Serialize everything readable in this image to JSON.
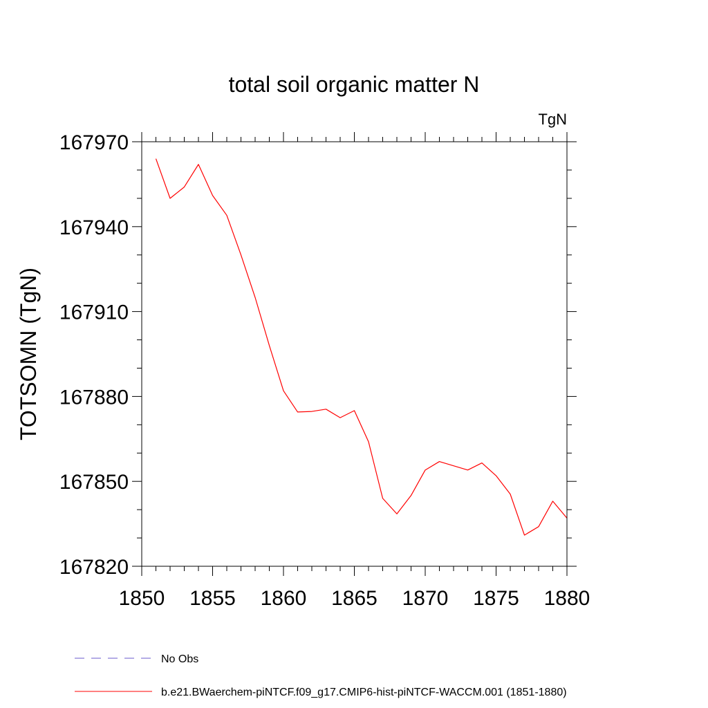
{
  "chart_data": {
    "type": "line",
    "title": "total soil organic matter N",
    "units_label": "TgN",
    "ylabel": "TOTSOMN  (TgN)",
    "xlabel": "",
    "xlim": [
      1850,
      1880
    ],
    "ylim": [
      167820,
      167970
    ],
    "xticks": [
      1850,
      1855,
      1860,
      1865,
      1870,
      1875,
      1880
    ],
    "xtick_labels": [
      "1850",
      "1855",
      "1860",
      "1865",
      "1870",
      "1875",
      "1880"
    ],
    "yticks": [
      167820,
      167850,
      167880,
      167910,
      167940,
      167970
    ],
    "ytick_labels": [
      "167820",
      "167850",
      "167880",
      "167910",
      "167940",
      "167970"
    ],
    "y_minor_step": 10,
    "x_minor_step": 1,
    "grid": false,
    "legend_position": "bottom-left",
    "series": [
      {
        "name": "b.e21.BWaerchem-piNTCF.f09_g17.CMIP6-hist-piNTCF-WACCM.001 (1851-1880)",
        "color": "#ff0000",
        "dash": "solid",
        "x": [
          1851,
          1852,
          1853,
          1854,
          1855,
          1856,
          1857,
          1858,
          1859,
          1860,
          1861,
          1862,
          1863,
          1864,
          1865,
          1866,
          1867,
          1868,
          1869,
          1870,
          1871,
          1872,
          1873,
          1874,
          1875,
          1876,
          1877,
          1878,
          1879,
          1880
        ],
        "values": [
          167964,
          167950,
          167954,
          167962,
          167951,
          167944,
          167930,
          167915,
          167898,
          167882,
          167874.5,
          167874.7,
          167875.5,
          167872.5,
          167875,
          167864,
          167844,
          167838.5,
          167845,
          167854,
          167857,
          167855.5,
          167854,
          167856.5,
          167852,
          167845.5,
          167831,
          167834,
          167843,
          167837
        ]
      }
    ],
    "legend": [
      {
        "label": "No Obs",
        "color": "#6a5acd",
        "dash": "dashed"
      },
      {
        "label": "b.e21.BWaerchem-piNTCF.f09_g17.CMIP6-hist-piNTCF-WACCM.001 (1851-1880)",
        "color": "#ff0000",
        "dash": "solid"
      }
    ]
  }
}
